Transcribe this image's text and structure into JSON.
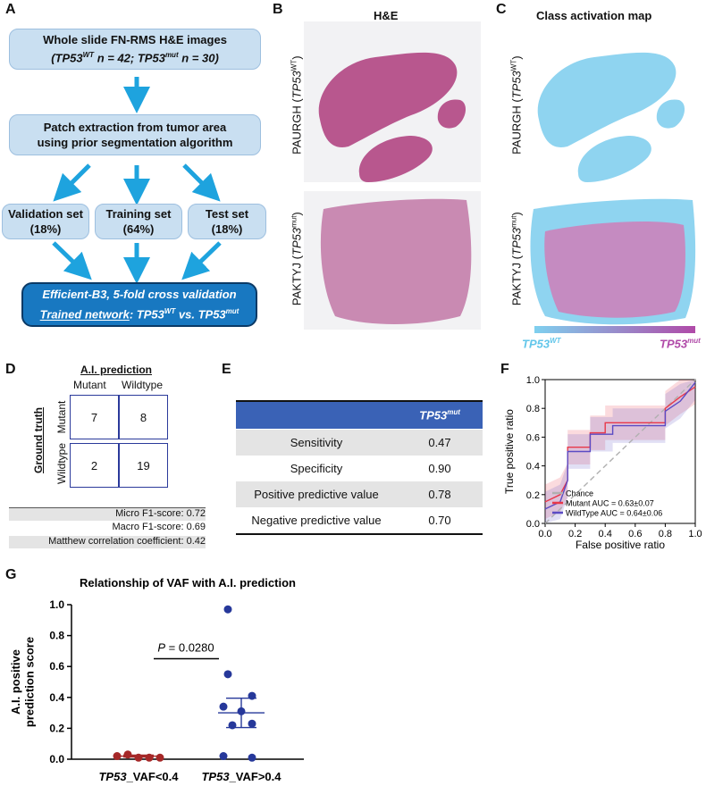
{
  "panels": {
    "A": "A",
    "B": "B",
    "C": "C",
    "D": "D",
    "E": "E",
    "F": "F",
    "G": "G"
  },
  "flow": {
    "box1_line1": "Whole slide FN-RMS H&E images",
    "box1_line2": "(TP53WT n = 42; TP53mut n = 30)",
    "box2_line1": "Patch extraction from tumor area",
    "box2_line2": "using prior segmentation algorithm",
    "validation": {
      "name": "Validation set",
      "pct": "(18%)"
    },
    "training": {
      "name": "Training set",
      "pct": "(64%)"
    },
    "test": {
      "name": "Test set",
      "pct": "(18%)"
    },
    "final_line1": "Efficient-B3, 5-fold cross validation",
    "final_line2": "Trained network: TP53WT vs. TP53mut"
  },
  "panelB": {
    "title": "H&E",
    "row1": "PAURGH (TP53WT)",
    "row2": "PAKTYJ (TP53mut)"
  },
  "panelC": {
    "title": "Class activation map",
    "row1": "PAURGH (TP53WT)",
    "row2": "PAKTYJ (TP53mut)",
    "scale_left": "TP53WT",
    "scale_right": "TP53mut",
    "colors": {
      "low": "#7fd0ef",
      "high": "#b04aa8"
    }
  },
  "panelD": {
    "header": "A.I. prediction",
    "col1": "Mutant",
    "col2": "Wildtype",
    "row_header": "Ground truth",
    "row1": "Mutant",
    "row2": "Wildtype",
    "cells": [
      "7",
      "8",
      "2",
      "19"
    ],
    "metrics": [
      {
        "label": "Micro F1-score:",
        "value": "0.72"
      },
      {
        "label": "Macro F1-score:",
        "value": "0.69"
      },
      {
        "label": "Matthew correlation coefficient:",
        "value": "0.42"
      }
    ]
  },
  "panelE": {
    "header": "TP53mut",
    "rows": [
      {
        "label": "Sensitivity",
        "value": "0.47"
      },
      {
        "label": "Specificity",
        "value": "0.90"
      },
      {
        "label": "Positive predictive value",
        "value": "0.78"
      },
      {
        "label": "Negative predictive value",
        "value": "0.70"
      }
    ],
    "header_color": "#3a62b6"
  },
  "chart_data": [
    {
      "type": "line",
      "panel": "F",
      "xlabel": "False positive ratio",
      "ylabel": "True positive ratio",
      "xlim": [
        0,
        1
      ],
      "ylim": [
        0,
        1
      ],
      "xticks": [
        "0.0",
        "0.2",
        "0.4",
        "0.6",
        "0.8",
        "1.0"
      ],
      "yticks": [
        "0.0",
        "0.2",
        "0.4",
        "0.6",
        "0.8",
        "1.0"
      ],
      "legend_position": "bottom-right",
      "series": [
        {
          "name": "Chance",
          "color": "#b0b0b0",
          "x": [
            0,
            1
          ],
          "y": [
            0,
            1
          ]
        },
        {
          "name": "Mutant AUC = 0.63±0.07",
          "color": "#e8384a",
          "x": [
            0,
            0.1,
            0.15,
            0.15,
            0.3,
            0.3,
            0.4,
            0.4,
            0.8,
            0.8,
            0.9,
            1.0
          ],
          "y": [
            0.15,
            0.2,
            0.3,
            0.53,
            0.53,
            0.63,
            0.63,
            0.7,
            0.7,
            0.8,
            0.88,
            0.95
          ]
        },
        {
          "name": "WildType AUC = 0.64±0.06",
          "color": "#5b4bc4",
          "x": [
            0,
            0.1,
            0.15,
            0.15,
            0.3,
            0.3,
            0.45,
            0.45,
            0.8,
            0.8,
            0.9,
            1.0
          ],
          "y": [
            0.1,
            0.15,
            0.3,
            0.5,
            0.5,
            0.62,
            0.62,
            0.68,
            0.68,
            0.78,
            0.85,
            0.98
          ]
        }
      ]
    },
    {
      "type": "scatter",
      "panel": "G",
      "title": "Relationship of VAF with A.I. prediction",
      "ylabel": "A.I. positive prediction score",
      "categories": [
        "TP53_VAF<0.4",
        "TP53_VAF>0.4"
      ],
      "ylim": [
        0,
        1
      ],
      "yticks": [
        "0.0",
        "0.2",
        "0.4",
        "0.6",
        "0.8",
        "1.0"
      ],
      "annotation": "P = 0.0280",
      "series": [
        {
          "category": "TP53_VAF<0.4",
          "color": "#a52828",
          "values": [
            0.02,
            0.03,
            0.01,
            0.01,
            0.01
          ],
          "mean": 0.02,
          "sem": 0.006
        },
        {
          "category": "TP53_VAF>0.4",
          "color": "#26389a",
          "values": [
            0.97,
            0.55,
            0.41,
            0.34,
            0.31,
            0.23,
            0.22,
            0.02,
            0.01
          ],
          "mean": 0.3,
          "sem": 0.095
        }
      ]
    }
  ]
}
